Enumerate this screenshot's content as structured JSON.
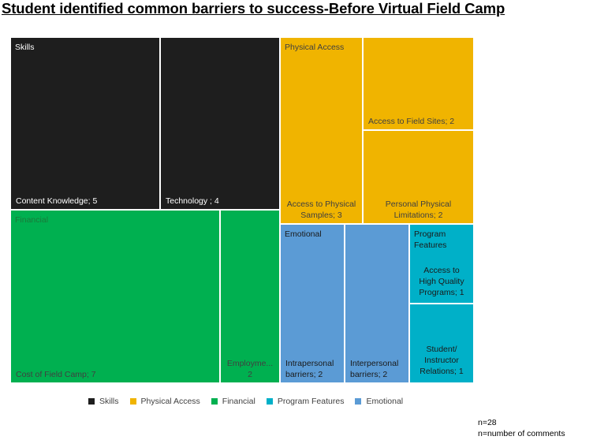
{
  "chart_title": "Student identified common barriers to success-Before Virtual Field Camp",
  "colors": {
    "skills": "#1e1e1e",
    "physical_access": "#f0b400",
    "financial": "#00b050",
    "program_features": "#00b0c8",
    "emotional": "#5b9bd5"
  },
  "chart_data": {
    "type": "treemap",
    "title": "Student identified common barriers to success-Before Virtual Field Camp",
    "groups": [
      {
        "name": "Skills",
        "color_key": "skills",
        "label_color": "#ffffff",
        "children": [
          {
            "name": "Content Knowledge",
            "value": 5,
            "label": "Content Knowledge; 5"
          },
          {
            "name": "Technology",
            "value": 4,
            "label": "Technology ; 4"
          }
        ]
      },
      {
        "name": "Physical Access",
        "color_key": "physical_access",
        "label_color": "#404040",
        "children": [
          {
            "name": "Access to Physical Samples",
            "value": 3,
            "label": "Access to Physical Samples; 3"
          },
          {
            "name": "Access to Field Sites",
            "value": 2,
            "label": "Access to Field Sites; 2"
          },
          {
            "name": "Personal Physical Limitations",
            "value": 2,
            "label": "Personal Physical Limitations; 2"
          }
        ]
      },
      {
        "name": "Financial",
        "color_key": "financial",
        "label_color": "#404040",
        "children": [
          {
            "name": "Cost of Field Camp",
            "value": 7,
            "label": "Cost of Field Camp; 7"
          },
          {
            "name": "Employment",
            "value": 2,
            "label": "Employme... 2"
          }
        ]
      },
      {
        "name": "Emotional",
        "color_key": "emotional",
        "label_color": "#1a1a1a",
        "children": [
          {
            "name": "Intrapersonal barriers",
            "value": 2,
            "label": "Intrapersonal barriers; 2"
          },
          {
            "name": "Interpersonal barriers",
            "value": 2,
            "label": "Interpersonal barriers; 2"
          }
        ]
      },
      {
        "name": "Program Features",
        "color_key": "program_features",
        "label_color": "#1a1a1a",
        "children": [
          {
            "name": "Access to High Quality Programs",
            "value": 1,
            "label": "Access to High Quality Programs; 1"
          },
          {
            "name": "Student/ Instructor Relations",
            "value": 1,
            "label": "Student/ Instructor Relations; 1"
          }
        ]
      }
    ],
    "legend": [
      {
        "label": "Skills",
        "color_key": "skills"
      },
      {
        "label": "Physical Access",
        "color_key": "physical_access"
      },
      {
        "label": "Financial",
        "color_key": "financial"
      },
      {
        "label": "Program Features",
        "color_key": "program_features"
      },
      {
        "label": "Emotional",
        "color_key": "emotional"
      }
    ],
    "legend_position": "bottom"
  },
  "notes": {
    "n": "n=28",
    "n_def": "n=number  of comments"
  }
}
